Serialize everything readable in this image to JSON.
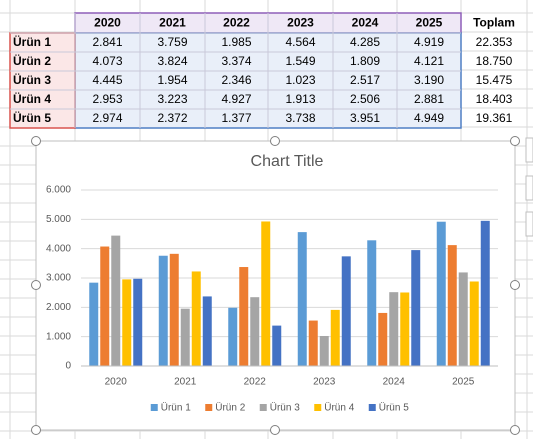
{
  "table": {
    "header": [
      "2020",
      "2021",
      "2022",
      "2023",
      "2024",
      "2025",
      "Toplam"
    ],
    "rows": [
      [
        "Ürün 1",
        "2.841",
        "3.759",
        "1.985",
        "4.564",
        "4.285",
        "4.919",
        "22.353"
      ],
      [
        "Ürün 2",
        "4.073",
        "3.824",
        "3.374",
        "1.549",
        "1.809",
        "4.121",
        "18.750"
      ],
      [
        "Ürün 3",
        "4.445",
        "1.954",
        "2.346",
        "1.023",
        "2.517",
        "3.190",
        "15.475"
      ],
      [
        "Ürün 4",
        "2.953",
        "3.223",
        "4.927",
        "1.913",
        "2.506",
        "2.881",
        "18.403"
      ],
      [
        "Ürün 5",
        "2.974",
        "2.372",
        "1.377",
        "3.738",
        "3.951",
        "4.949",
        "19.361"
      ]
    ]
  },
  "chart_data": {
    "type": "bar",
    "title": "Chart Title",
    "categories": [
      "2020",
      "2021",
      "2022",
      "2023",
      "2024",
      "2025"
    ],
    "series": [
      {
        "name": "Ürün 1",
        "color": "#5b9bd5",
        "values": [
          2841,
          3759,
          1985,
          4564,
          4285,
          4919
        ]
      },
      {
        "name": "Ürün 2",
        "color": "#ed7d31",
        "values": [
          4073,
          3824,
          3374,
          1549,
          1809,
          4121
        ]
      },
      {
        "name": "Ürün 3",
        "color": "#a5a5a5",
        "values": [
          4445,
          1954,
          2346,
          1023,
          2517,
          3190
        ]
      },
      {
        "name": "Ürün 4",
        "color": "#ffc000",
        "values": [
          2953,
          3223,
          4927,
          1913,
          2506,
          2881
        ]
      },
      {
        "name": "Ürün 5",
        "color": "#4472c4",
        "values": [
          2974,
          2372,
          1377,
          3738,
          3951,
          4949
        ]
      }
    ],
    "ylim": [
      0,
      6000
    ],
    "yticks": [
      0,
      {
        "value": 1000,
        "label": "1.000"
      },
      {
        "value": 2000,
        "label": "2.000"
      },
      {
        "value": 3000,
        "label": "3.000"
      },
      {
        "value": 4000,
        "label": "4.000"
      },
      {
        "value": 5000,
        "label": "5.000"
      },
      {
        "value": 6000,
        "label": "6.000"
      }
    ],
    "grid": true,
    "legend": "bottom"
  }
}
